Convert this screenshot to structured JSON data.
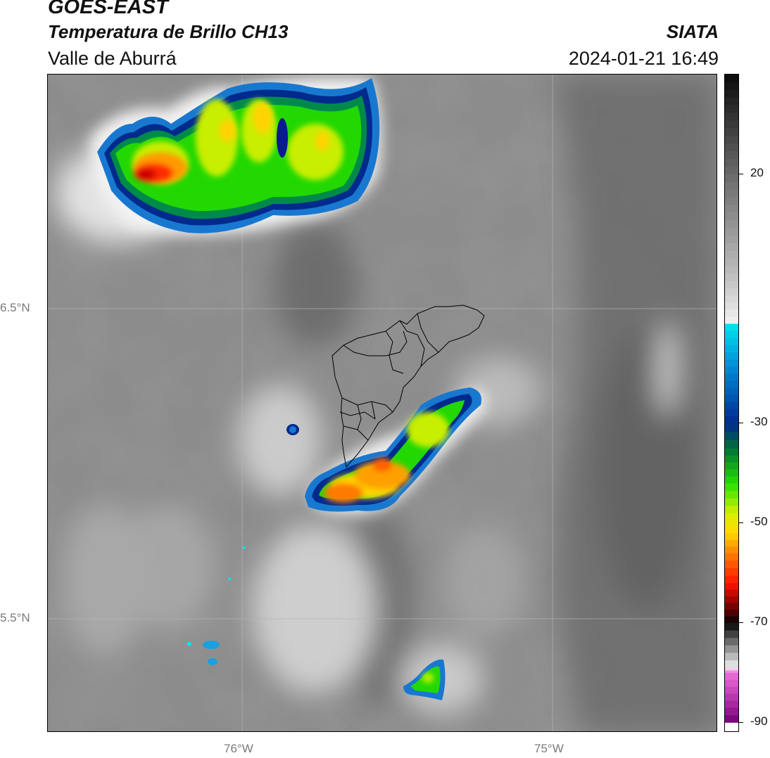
{
  "header": {
    "satellite": "GOES-EAST",
    "product": "Temperatura de Brillo CH13",
    "region": "Valle de Aburrá",
    "agency": "SIATA",
    "datetime": "2024-01-21 16:49"
  },
  "axes": {
    "lat_labels": [
      {
        "text": "6.5°N",
        "value": 6.5
      },
      {
        "text": "5.5°N",
        "value": 5.5
      }
    ],
    "lon_labels": [
      {
        "text": "76°W",
        "value": -76.0
      },
      {
        "text": "75°W",
        "value": -75.0
      }
    ],
    "lat_range": [
      5.13,
      7.25
    ],
    "lon_range": [
      -76.63,
      -74.46
    ]
  },
  "colorbar": {
    "labels": [
      {
        "text": "20",
        "value": 20
      },
      {
        "text": "-30",
        "value": -30
      },
      {
        "text": "-50",
        "value": -50
      },
      {
        "text": "-70",
        "value": -70
      },
      {
        "text": "-90",
        "value": -90
      }
    ],
    "range": [
      -92,
      40
    ],
    "stops": [
      {
        "t": 40,
        "color": "#0a0a0a"
      },
      {
        "t": 20,
        "color": "#6a6a6a"
      },
      {
        "t": 0,
        "color": "#bdbdbd"
      },
      {
        "t": -10,
        "color": "#f2f2f2"
      },
      {
        "t": -10,
        "color": "#00e5ee"
      },
      {
        "t": -20,
        "color": "#007fd0"
      },
      {
        "t": -30,
        "color": "#002a8c"
      },
      {
        "t": -35,
        "color": "#00703a"
      },
      {
        "t": -42,
        "color": "#22e000"
      },
      {
        "t": -48,
        "color": "#d8f000"
      },
      {
        "t": -52,
        "color": "#ffd800"
      },
      {
        "t": -56,
        "color": "#ff8000"
      },
      {
        "t": -62,
        "color": "#ff1400"
      },
      {
        "t": -66,
        "color": "#900000"
      },
      {
        "t": -70,
        "color": "#050505"
      },
      {
        "t": -76,
        "color": "#a8a8a8"
      },
      {
        "t": -79,
        "color": "#f0f0f0"
      },
      {
        "t": -80,
        "color": "#f070d8"
      },
      {
        "t": -87,
        "color": "#a0209a"
      },
      {
        "t": -90,
        "color": "#700070"
      },
      {
        "t": -90,
        "color": "#ffffff"
      }
    ]
  },
  "map": {
    "background_color": "#8a8a8a",
    "gridline_color": "#b4b4b4",
    "outline_color": "#000000",
    "storm_cells": [
      {
        "name": "north-west-cell",
        "min_temp": -62
      },
      {
        "name": "central-cell",
        "min_temp": -58
      },
      {
        "name": "south-cell",
        "min_temp": -45
      }
    ]
  }
}
